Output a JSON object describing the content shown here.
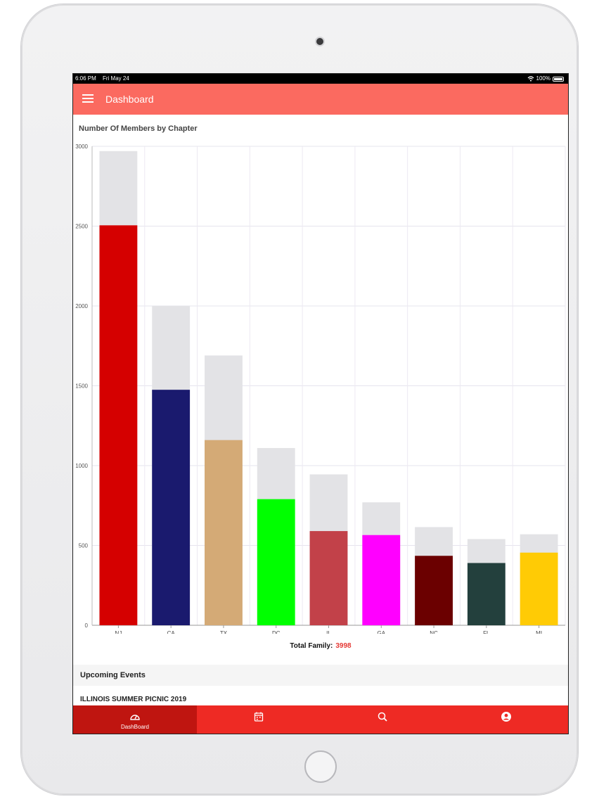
{
  "status_bar": {
    "time": "6:06 PM",
    "date": "Fri May 24",
    "battery": "100%"
  },
  "app_bar": {
    "title": "Dashboard"
  },
  "chart": {
    "title": "Number Of Members by Chapter"
  },
  "chart_data": {
    "type": "bar",
    "title": "Number Of Members by Chapter",
    "xlabel": "",
    "ylabel": "",
    "ylim": [
      0,
      3000
    ],
    "yticks": [
      0,
      500,
      1000,
      1500,
      2000,
      2500,
      3000
    ],
    "categories": [
      "NJ",
      "CA",
      "TX",
      "DC",
      "IL",
      "GA",
      "NC",
      "FL",
      "MI"
    ],
    "series": [
      {
        "values": [
          2970,
          2000,
          1690,
          1110,
          945,
          770,
          615,
          540,
          570
        ],
        "color": "#e3e3e6"
      },
      {
        "values": [
          2505,
          1475,
          1160,
          790,
          590,
          565,
          435,
          390,
          455
        ]
      }
    ],
    "bar_colors": [
      "#d50000",
      "#1a1a6e",
      "#d4aa76",
      "#00ff00",
      "#c24149",
      "#ff00ff",
      "#6b0000",
      "#23403d",
      "#ffcb05"
    ],
    "grid": true
  },
  "summary": {
    "total_family_label": "Total Family:",
    "total_family_value": "3998"
  },
  "events": {
    "header": "Upcoming Events",
    "items": [
      {
        "title": "ILLINOIS SUMMER PICNIC 2019"
      }
    ]
  },
  "tab_bar": {
    "tabs": [
      {
        "label": "DashBoard",
        "icon": "dashboard-icon",
        "active": true
      },
      {
        "label": "",
        "icon": "calendar-icon",
        "active": false
      },
      {
        "label": "",
        "icon": "search-icon",
        "active": false
      },
      {
        "label": "",
        "icon": "profile-icon",
        "active": false
      }
    ]
  },
  "colors": {
    "app_bar": "#fb6a60",
    "tab_bar": "#ee2a24",
    "tab_active": "#bf1510",
    "accent_value": "#e53935"
  }
}
